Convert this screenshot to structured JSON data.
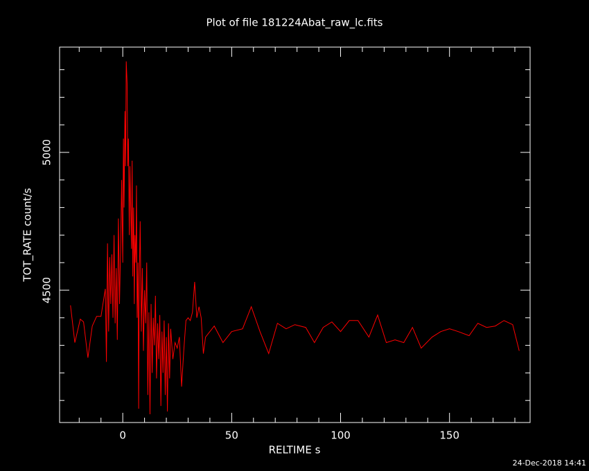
{
  "chart_data": {
    "type": "line",
    "title": "Plot of file 181224Abat_raw_lc.fits",
    "x_label": "RELTIME  s",
    "y_label": "TOT_RATE  count/s",
    "timestamp": "24-Dec-2018 14:41",
    "color": "#ff0000",
    "xlim": [
      -29,
      187
    ],
    "ylim": [
      4020,
      5382
    ],
    "xticks": [
      0,
      50,
      100,
      150
    ],
    "yticks": [
      4500,
      5000
    ],
    "xminor": [
      -20,
      -10,
      10,
      20,
      30,
      40,
      60,
      70,
      80,
      90,
      110,
      120,
      130,
      140,
      160,
      170,
      180
    ],
    "yminor": [
      4100,
      4200,
      4300,
      4400,
      4600,
      4700,
      4800,
      4900,
      5100,
      5200,
      5300
    ],
    "x": [
      -24,
      -22,
      -19.5,
      -18,
      -16,
      -14,
      -12,
      -10,
      -8,
      -7.5,
      -7,
      -6.5,
      -6,
      -5.5,
      -5,
      -4.5,
      -4,
      -3.5,
      -3,
      -2.5,
      -2,
      -1.5,
      -1,
      -0.5,
      0,
      0.3,
      0.6,
      1,
      1.3,
      1.6,
      2,
      2.3,
      2.6,
      3,
      3.3,
      3.6,
      4,
      4.3,
      4.6,
      5,
      5.3,
      5.6,
      6,
      6.3,
      6.6,
      7,
      7.3,
      7.6,
      8,
      8.5,
      9,
      9.5,
      10,
      10.5,
      11,
      11.5,
      12,
      12.5,
      13,
      13.5,
      14,
      14.5,
      15,
      15.5,
      16,
      16.5,
      17,
      17.5,
      18,
      18.5,
      19,
      19.5,
      20,
      20.5,
      21,
      21.5,
      22,
      23,
      24,
      25,
      26,
      27,
      28,
      29,
      30,
      31,
      32,
      33,
      34,
      35,
      36,
      37,
      38,
      42,
      46,
      50,
      55,
      59,
      63,
      67,
      71,
      75,
      79,
      84,
      88,
      92,
      96,
      100,
      104,
      108,
      113,
      117,
      121,
      125,
      129,
      133,
      137,
      142,
      146,
      150,
      154,
      159,
      163,
      167,
      171,
      175,
      179,
      182
    ],
    "values": [
      4445,
      4310,
      4395,
      4385,
      4255,
      4370,
      4405,
      4405,
      4505,
      4240,
      4670,
      4350,
      4620,
      4450,
      4630,
      4400,
      4700,
      4380,
      4580,
      4320,
      4760,
      4450,
      4650,
      4900,
      4600,
      5050,
      4800,
      5150,
      4950,
      5330,
      5250,
      4950,
      5050,
      4700,
      4950,
      4820,
      4650,
      4970,
      4550,
      4800,
      4450,
      4700,
      4600,
      4880,
      4400,
      4600,
      4070,
      4550,
      4750,
      4350,
      4580,
      4280,
      4500,
      4380,
      4600,
      4120,
      4420,
      4050,
      4450,
      4200,
      4400,
      4300,
      4480,
      4180,
      4380,
      4250,
      4410,
      4080,
      4350,
      4200,
      4390,
      4120,
      4330,
      4060,
      4380,
      4180,
      4360,
      4250,
      4310,
      4290,
      4330,
      4150,
      4280,
      4390,
      4400,
      4390,
      4420,
      4530,
      4400,
      4440,
      4400,
      4270,
      4330,
      4370,
      4310,
      4350,
      4360,
      4440,
      4350,
      4270,
      4380,
      4360,
      4375,
      4365,
      4310,
      4365,
      4385,
      4350,
      4390,
      4390,
      4330,
      4410,
      4310,
      4320,
      4310,
      4365,
      4290,
      4330,
      4350,
      4360,
      4350,
      4335,
      4380,
      4365,
      4370,
      4390,
      4375,
      4280
    ]
  }
}
